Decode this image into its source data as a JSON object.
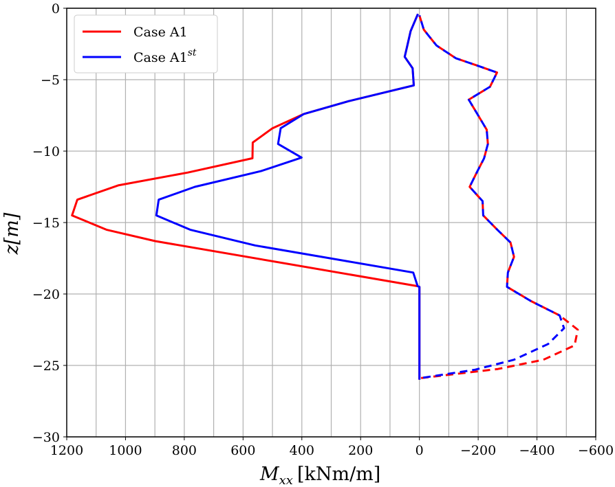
{
  "chart_data": {
    "type": "line",
    "title": "",
    "xlabel": "M_xx [kNm/m]",
    "xlabel_main": "M",
    "xlabel_sub": "xx",
    "xlabel_unit": "[kNm/m]",
    "ylabel": "z[m]",
    "ylabel_var": "z",
    "ylabel_unit": "[m]",
    "xlim": [
      1200,
      -600
    ],
    "ylim": [
      -30,
      0
    ],
    "xticks": [
      1200,
      1000,
      800,
      600,
      400,
      200,
      0,
      -200,
      -400,
      -600
    ],
    "xtick_labels": [
      "1200",
      "1000",
      "800",
      "600",
      "400",
      "200",
      "0",
      "−200",
      "−400",
      "−600"
    ],
    "yticks": [
      0,
      -5,
      -10,
      -15,
      -20,
      -25,
      -30
    ],
    "ytick_labels": [
      "0",
      "−5",
      "−10",
      "−15",
      "−20",
      "−25",
      "−30"
    ],
    "grid": true,
    "legend_position": "top-left",
    "series": [
      {
        "name": "Case A1",
        "label": "Case A1",
        "sup": "",
        "color": "#ff0000",
        "style": "solid",
        "x": [
          5,
          30,
          42,
          50,
          23,
          19,
          240,
          393,
          500,
          567,
          568,
          788,
          1025,
          1164,
          1182,
          1065,
          899,
          6,
          0,
          0
        ],
        "y": [
          -0.4,
          -1.6,
          -2.7,
          -3.4,
          -4.2,
          -5.4,
          -6.5,
          -7.4,
          -8.4,
          -9.4,
          -10.5,
          -11.5,
          -12.4,
          -13.4,
          -14.5,
          -15.5,
          -16.3,
          -19.45,
          -19.5,
          -26
        ]
      },
      {
        "name": "Case A1^st",
        "label": "Case A1",
        "sup": "st",
        "color": "#0000ff",
        "style": "solid",
        "x": [
          5,
          30,
          42,
          50,
          23,
          19,
          240,
          393,
          472,
          481,
          401,
          539,
          764,
          887,
          895,
          780,
          559,
          21,
          6,
          0,
          0
        ],
        "y": [
          -0.4,
          -1.6,
          -2.7,
          -3.4,
          -4.2,
          -5.4,
          -6.5,
          -7.4,
          -8.4,
          -9.5,
          -10.45,
          -11.4,
          -12.5,
          -13.4,
          -14.5,
          -15.5,
          -16.6,
          -18.5,
          -19.45,
          -19.5,
          -26
        ]
      },
      {
        "name": "Case A1 (dashed)",
        "color": "#ff0000",
        "style": "dashed",
        "x": [
          0,
          -15,
          -58,
          -124,
          -195,
          -264,
          -240,
          -168,
          -200,
          -229,
          -233,
          -220,
          -195,
          -171,
          -215,
          -217,
          -265,
          -310,
          -322,
          -301,
          -298,
          -380,
          -477,
          -539,
          -528,
          -422,
          -267,
          0
        ],
        "y": [
          -0.5,
          -1.5,
          -2.6,
          -3.5,
          -4.0,
          -4.5,
          -5.5,
          -6.4,
          -7.5,
          -8.5,
          -9.5,
          -10.5,
          -11.5,
          -12.5,
          -13.5,
          -14.5,
          -15.5,
          -16.4,
          -17.4,
          -18.5,
          -19.5,
          -20.5,
          -21.5,
          -22.5,
          -23.6,
          -24.6,
          -25.25,
          -25.9
        ]
      },
      {
        "name": "Case A1^st (dashed)",
        "color": "#0000ff",
        "style": "dashed",
        "x": [
          0,
          -15,
          -58,
          -124,
          -195,
          -264,
          -240,
          -168,
          -200,
          -229,
          -233,
          -220,
          -195,
          -171,
          -215,
          -217,
          -265,
          -310,
          -322,
          -301,
          -298,
          -380,
          -477,
          -492,
          -438,
          -322,
          -190,
          0
        ],
        "y": [
          -0.5,
          -1.5,
          -2.6,
          -3.5,
          -4.0,
          -4.5,
          -5.5,
          -6.4,
          -7.5,
          -8.5,
          -9.5,
          -10.5,
          -11.5,
          -12.5,
          -13.5,
          -14.5,
          -15.5,
          -16.4,
          -17.4,
          -18.5,
          -19.5,
          -20.5,
          -21.5,
          -22.4,
          -23.5,
          -24.6,
          -25.3,
          -25.9
        ]
      }
    ]
  }
}
